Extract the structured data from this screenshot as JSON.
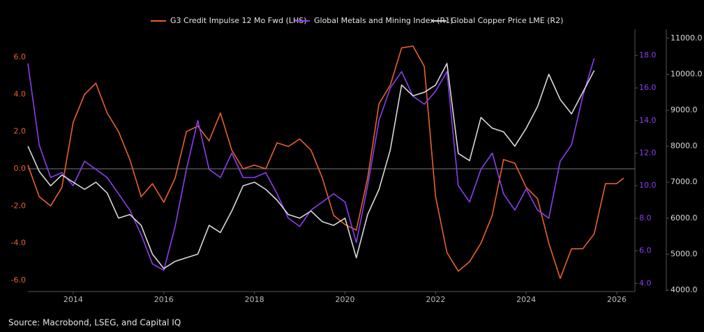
{
  "chart_data": {
    "type": "line",
    "source": "Source: Macrobond, LSEG, and Capital IQ",
    "xlim": [
      2013.0,
      2026.4
    ],
    "xticks": [
      2014,
      2016,
      2018,
      2020,
      2022,
      2024,
      2026
    ],
    "ylim": [
      -6.6,
      7.5
    ],
    "yticks": [
      {
        "value": 6,
        "label": "6.0"
      },
      {
        "value": 4,
        "label": "4.0"
      },
      {
        "value": 2,
        "label": "2.0"
      },
      {
        "value": 0,
        "label": "0.0"
      },
      {
        "value": -2,
        "label": "-2.0"
      },
      {
        "value": -4,
        "label": "-4.0"
      },
      {
        "value": -6,
        "label": "-6.0"
      }
    ],
    "y2lim": [
      3.5,
      19.6
    ],
    "y2ticks": [
      {
        "value": 18,
        "label": "18.0"
      },
      {
        "value": 16,
        "label": "16.0"
      },
      {
        "value": 14,
        "label": "14.0"
      },
      {
        "value": 12,
        "label": "12.0"
      },
      {
        "value": 10,
        "label": "10.0"
      },
      {
        "value": 8,
        "label": "8.0"
      },
      {
        "value": 6,
        "label": "6.0"
      },
      {
        "value": 4,
        "label": "4.0"
      }
    ],
    "y3lim": [
      3960,
      11250
    ],
    "y3ticks": [
      {
        "value": 11000,
        "label": "11000.0"
      },
      {
        "value": 10000,
        "label": "10000.0"
      },
      {
        "value": 9000,
        "label": "9000.0"
      },
      {
        "value": 8000,
        "label": "8000.0"
      },
      {
        "value": 7000,
        "label": "7000.0"
      },
      {
        "value": 6000,
        "label": "6000.0"
      },
      {
        "value": 5000,
        "label": "5000.0"
      },
      {
        "value": 4000,
        "label": "4000.0"
      }
    ],
    "series": [
      {
        "name": "G3 Credit Impulse 12 Mo Fwd (LHS)",
        "color": "#e8622a",
        "axis": "y",
        "x": [
          2013.0,
          2013.25,
          2013.5,
          2013.75,
          2014.0,
          2014.25,
          2014.5,
          2014.75,
          2015.0,
          2015.25,
          2015.5,
          2015.75,
          2016.0,
          2016.25,
          2016.5,
          2016.75,
          2017.0,
          2017.25,
          2017.5,
          2017.75,
          2018.0,
          2018.25,
          2018.5,
          2018.75,
          2019.0,
          2019.25,
          2019.5,
          2019.75,
          2020.0,
          2020.25,
          2020.5,
          2020.75,
          2021.0,
          2021.25,
          2021.5,
          2021.75,
          2022.0,
          2022.25,
          2022.5,
          2022.75,
          2023.0,
          2023.25,
          2023.5,
          2023.75,
          2024.0,
          2024.25,
          2024.5,
          2024.75,
          2025.0,
          2025.25,
          2025.5,
          2025.75,
          2026.0,
          2026.15
        ],
        "values": [
          0.2,
          -1.5,
          -2.0,
          -1.0,
          2.5,
          4.0,
          4.6,
          3.0,
          2.0,
          0.5,
          -1.5,
          -0.8,
          -1.8,
          -0.5,
          2.0,
          2.3,
          1.5,
          3.0,
          1.0,
          0.0,
          0.2,
          0.0,
          1.4,
          1.2,
          1.6,
          1.0,
          -0.5,
          -2.5,
          -3.0,
          -3.3,
          -0.5,
          3.5,
          4.5,
          6.5,
          6.6,
          5.5,
          -1.5,
          -4.5,
          -5.5,
          -5.0,
          -4.0,
          -2.5,
          0.5,
          0.3,
          -1.0,
          -1.6,
          -4.0,
          -5.9,
          -4.3,
          -4.3,
          -3.5,
          -0.8,
          -0.8,
          -0.5
        ]
      },
      {
        "name": "Global Metals and Mining Index (R1)",
        "color": "#8a3ff0",
        "axis": "y2",
        "x": [
          2013.0,
          2013.25,
          2013.5,
          2013.75,
          2014.0,
          2014.25,
          2014.5,
          2014.75,
          2015.0,
          2015.25,
          2015.5,
          2015.75,
          2016.0,
          2016.25,
          2016.5,
          2016.75,
          2017.0,
          2017.25,
          2017.5,
          2017.75,
          2018.0,
          2018.25,
          2018.5,
          2018.75,
          2019.0,
          2019.25,
          2019.5,
          2019.75,
          2020.0,
          2020.25,
          2020.5,
          2020.75,
          2021.0,
          2021.25,
          2021.5,
          2021.75,
          2022.0,
          2022.25,
          2022.5,
          2022.75,
          2023.0,
          2023.25,
          2023.5,
          2023.75,
          2024.0,
          2024.25,
          2024.5,
          2024.75,
          2025.0,
          2025.25,
          2025.5
        ],
        "values": [
          17.5,
          12.5,
          10.5,
          10.8,
          10.0,
          11.5,
          11.0,
          10.5,
          9.5,
          8.5,
          7.0,
          5.2,
          4.8,
          7.5,
          11.0,
          14.0,
          11.0,
          10.5,
          12.0,
          10.5,
          10.5,
          10.8,
          9.5,
          8.0,
          7.5,
          8.5,
          9.0,
          9.5,
          9.0,
          6.5,
          10.0,
          14.0,
          16.0,
          17.0,
          15.5,
          15.0,
          15.8,
          17.0,
          10.0,
          9.0,
          11.0,
          12.0,
          9.5,
          8.5,
          9.8,
          8.5,
          8.0,
          11.5,
          12.5,
          15.5,
          17.8
        ]
      },
      {
        "name": "Global Copper Price LME (R2)",
        "color": "#d9d9d9",
        "axis": "y3",
        "x": [
          2013.0,
          2013.25,
          2013.5,
          2013.75,
          2014.0,
          2014.25,
          2014.5,
          2014.75,
          2015.0,
          2015.25,
          2015.5,
          2015.75,
          2016.0,
          2016.25,
          2016.5,
          2016.75,
          2017.0,
          2017.25,
          2017.5,
          2017.75,
          2018.0,
          2018.25,
          2018.5,
          2018.75,
          2019.0,
          2019.25,
          2019.5,
          2019.75,
          2020.0,
          2020.25,
          2020.5,
          2020.75,
          2021.0,
          2021.25,
          2021.5,
          2021.75,
          2022.0,
          2022.25,
          2022.5,
          2022.75,
          2023.0,
          2023.25,
          2023.5,
          2023.75,
          2024.0,
          2024.25,
          2024.5,
          2024.75,
          2025.0,
          2025.25,
          2025.5
        ],
        "values": [
          8000,
          7300,
          6900,
          7200,
          7000,
          6800,
          7000,
          6700,
          6000,
          6100,
          5800,
          5000,
          4600,
          4800,
          4900,
          5000,
          5800,
          5600,
          6200,
          6900,
          7000,
          6800,
          6500,
          6100,
          6000,
          6200,
          5900,
          5800,
          6000,
          4900,
          6100,
          6800,
          7900,
          9700,
          9400,
          9500,
          9700,
          10300,
          7800,
          7600,
          8800,
          8500,
          8400,
          8000,
          8500,
          9100,
          10000,
          9300,
          8900,
          9500,
          10100
        ]
      }
    ]
  }
}
